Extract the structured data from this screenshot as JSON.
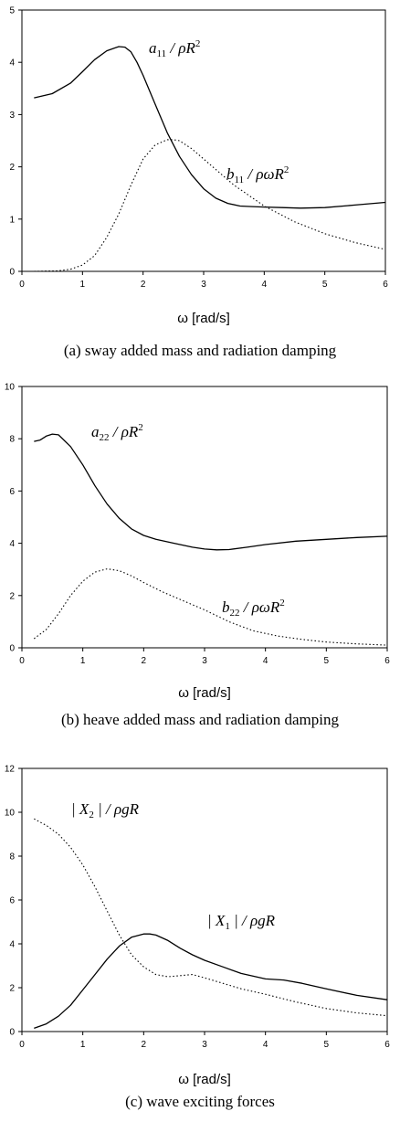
{
  "chart_data": [
    {
      "type": "line",
      "caption": "(a) sway added mass and radiation damping",
      "xlabel": "ω [rad/s]",
      "xlim": [
        0,
        6
      ],
      "ylim": [
        0,
        5
      ],
      "xticks": [
        "0",
        "1",
        "2",
        "3",
        "4",
        "5",
        "6"
      ],
      "yticks": [
        "0",
        "1",
        "2",
        "3",
        "4",
        "5"
      ],
      "series": [
        {
          "name": "a11 / ρR²",
          "style": "solid",
          "x": [
            0.2,
            0.5,
            0.8,
            1.0,
            1.2,
            1.4,
            1.6,
            1.7,
            1.8,
            1.9,
            2.0,
            2.2,
            2.4,
            2.6,
            2.8,
            3.0,
            3.2,
            3.4,
            3.6,
            3.8,
            4.0,
            4.3,
            4.6,
            5.0,
            5.5,
            6.0
          ],
          "y": [
            3.32,
            3.4,
            3.6,
            3.82,
            4.05,
            4.22,
            4.3,
            4.29,
            4.2,
            4.0,
            3.75,
            3.2,
            2.65,
            2.2,
            1.85,
            1.58,
            1.4,
            1.3,
            1.25,
            1.24,
            1.23,
            1.22,
            1.21,
            1.22,
            1.27,
            1.32
          ]
        },
        {
          "name": "b11 / ρωR²",
          "style": "dotted",
          "x": [
            0.2,
            0.6,
            0.8,
            1.0,
            1.2,
            1.4,
            1.6,
            1.8,
            2.0,
            2.2,
            2.4,
            2.5,
            2.6,
            2.8,
            3.0,
            3.2,
            3.5,
            4.0,
            4.5,
            5.0,
            5.5,
            6.0
          ],
          "y": [
            0.0,
            0.01,
            0.04,
            0.12,
            0.3,
            0.65,
            1.1,
            1.65,
            2.15,
            2.42,
            2.52,
            2.52,
            2.5,
            2.35,
            2.15,
            1.95,
            1.65,
            1.25,
            0.95,
            0.72,
            0.55,
            0.42
          ]
        }
      ],
      "annotations": [
        {
          "base": "a",
          "sub": "11",
          "rest": " / ρR",
          "sup": "2"
        },
        {
          "base": "b",
          "sub": "11",
          "rest": " / ρωR",
          "sup": "2"
        }
      ]
    },
    {
      "type": "line",
      "caption": "(b) heave added mass and radiation damping",
      "xlabel": "ω [rad/s]",
      "xlim": [
        0,
        6
      ],
      "ylim": [
        0,
        10
      ],
      "xticks": [
        "0",
        "1",
        "2",
        "3",
        "4",
        "5",
        "6"
      ],
      "yticks": [
        "0",
        "2",
        "4",
        "6",
        "8",
        "10"
      ],
      "series": [
        {
          "name": "a22 / ρR²",
          "style": "solid",
          "x": [
            0.2,
            0.3,
            0.4,
            0.5,
            0.6,
            0.8,
            1.0,
            1.2,
            1.4,
            1.6,
            1.8,
            2.0,
            2.2,
            2.5,
            2.8,
            3.0,
            3.2,
            3.4,
            3.7,
            4.0,
            4.5,
            5.0,
            5.5,
            6.0
          ],
          "y": [
            7.9,
            7.95,
            8.1,
            8.18,
            8.15,
            7.7,
            7.0,
            6.2,
            5.5,
            4.95,
            4.55,
            4.3,
            4.15,
            4.0,
            3.85,
            3.78,
            3.75,
            3.76,
            3.85,
            3.95,
            4.08,
            4.15,
            4.22,
            4.27
          ]
        },
        {
          "name": "b22 / ρωR²",
          "style": "dotted",
          "x": [
            0.2,
            0.4,
            0.6,
            0.8,
            1.0,
            1.2,
            1.4,
            1.6,
            1.8,
            2.0,
            2.3,
            2.6,
            3.0,
            3.4,
            3.8,
            4.2,
            4.6,
            5.0,
            5.5,
            6.0
          ],
          "y": [
            0.35,
            0.7,
            1.3,
            2.0,
            2.55,
            2.9,
            3.02,
            2.95,
            2.75,
            2.5,
            2.15,
            1.85,
            1.45,
            1.0,
            0.65,
            0.45,
            0.32,
            0.22,
            0.15,
            0.1
          ]
        }
      ],
      "annotations": [
        {
          "base": "a",
          "sub": "22",
          "rest": " / ρR",
          "sup": "2"
        },
        {
          "base": "b",
          "sub": "22",
          "rest": " / ρωR",
          "sup": "2"
        }
      ]
    },
    {
      "type": "line",
      "caption": "(c) wave exciting forces",
      "xlabel": "ω [rad/s]",
      "xlim": [
        0,
        6
      ],
      "ylim": [
        0,
        12
      ],
      "xticks": [
        "0",
        "1",
        "2",
        "3",
        "4",
        "5",
        "6"
      ],
      "yticks": [
        "0",
        "2",
        "4",
        "6",
        "8",
        "10",
        "12"
      ],
      "series": [
        {
          "name": "|X1| / ρgR",
          "style": "solid",
          "x": [
            0.2,
            0.4,
            0.6,
            0.8,
            1.0,
            1.2,
            1.4,
            1.6,
            1.8,
            2.0,
            2.1,
            2.2,
            2.4,
            2.6,
            2.8,
            3.0,
            3.3,
            3.6,
            4.0,
            4.3,
            4.6,
            5.0,
            5.5,
            6.0
          ],
          "y": [
            0.15,
            0.35,
            0.7,
            1.2,
            1.9,
            2.6,
            3.3,
            3.9,
            4.3,
            4.45,
            4.45,
            4.4,
            4.15,
            3.8,
            3.5,
            3.25,
            2.95,
            2.65,
            2.4,
            2.35,
            2.2,
            1.95,
            1.65,
            1.45
          ]
        },
        {
          "name": "|X2| / ρgR",
          "style": "dotted",
          "x": [
            0.2,
            0.4,
            0.6,
            0.8,
            1.0,
            1.2,
            1.4,
            1.6,
            1.8,
            2.0,
            2.2,
            2.4,
            2.6,
            2.8,
            3.0,
            3.3,
            3.6,
            4.0,
            4.5,
            5.0,
            5.5,
            6.0
          ],
          "y": [
            9.7,
            9.4,
            9.0,
            8.4,
            7.6,
            6.6,
            5.5,
            4.4,
            3.5,
            2.95,
            2.6,
            2.5,
            2.55,
            2.6,
            2.45,
            2.2,
            1.95,
            1.7,
            1.35,
            1.05,
            0.85,
            0.72
          ]
        }
      ],
      "annotations": [
        {
          "base": "| X",
          "sub": "2",
          "rest": " | / ρgR",
          "sup": ""
        },
        {
          "base": "| X",
          "sub": "1",
          "rest": " | / ρgR",
          "sup": ""
        }
      ]
    }
  ]
}
